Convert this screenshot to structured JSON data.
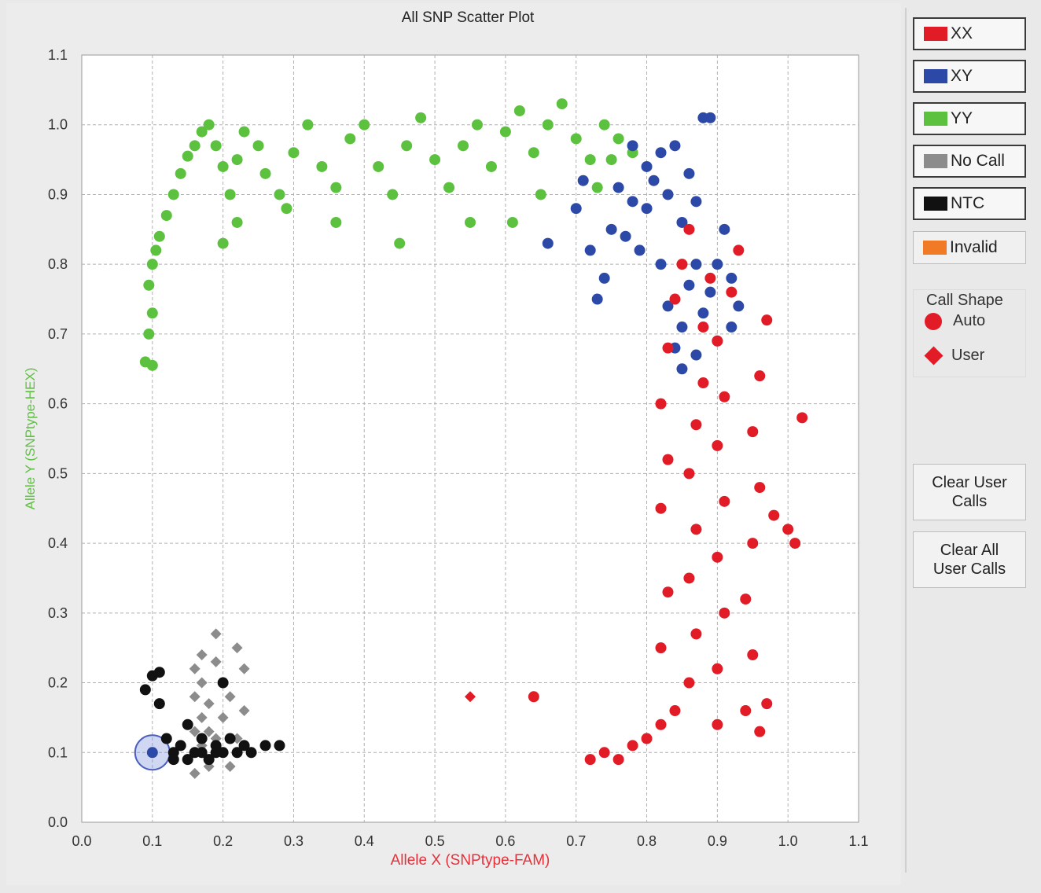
{
  "chart_data": {
    "type": "scatter",
    "title": "All SNP Scatter Plot",
    "xlabel": "Allele X (SNPtype-FAM)",
    "ylabel": "Allele Y (SNPtype-HEX)",
    "xlabel_color": "#e8303a",
    "ylabel_color": "#5cc13f",
    "xlim": [
      0.0,
      1.1
    ],
    "ylim": [
      0.0,
      1.1
    ],
    "xticks": [
      "0.0",
      "0.1",
      "0.2",
      "0.3",
      "0.4",
      "0.5",
      "0.6",
      "0.7",
      "0.8",
      "0.9",
      "1.0",
      "1.1"
    ],
    "yticks": [
      "0.0",
      "0.1",
      "0.2",
      "0.3",
      "0.4",
      "0.5",
      "0.6",
      "0.7",
      "0.8",
      "0.9",
      "1.0",
      "1.1"
    ],
    "grid": true,
    "series": [
      {
        "name": "YY",
        "color": "#5cc13f",
        "shape": "circle",
        "points": [
          [
            0.09,
            0.66
          ],
          [
            0.1,
            0.655
          ],
          [
            0.095,
            0.7
          ],
          [
            0.1,
            0.73
          ],
          [
            0.095,
            0.77
          ],
          [
            0.1,
            0.8
          ],
          [
            0.105,
            0.82
          ],
          [
            0.11,
            0.84
          ],
          [
            0.12,
            0.87
          ],
          [
            0.13,
            0.9
          ],
          [
            0.14,
            0.93
          ],
          [
            0.15,
            0.955
          ],
          [
            0.16,
            0.97
          ],
          [
            0.17,
            0.99
          ],
          [
            0.18,
            1.0
          ],
          [
            0.19,
            0.97
          ],
          [
            0.2,
            0.94
          ],
          [
            0.21,
            0.9
          ],
          [
            0.22,
            0.95
          ],
          [
            0.23,
            0.99
          ],
          [
            0.25,
            0.97
          ],
          [
            0.26,
            0.93
          ],
          [
            0.28,
            0.9
          ],
          [
            0.3,
            0.96
          ],
          [
            0.32,
            1.0
          ],
          [
            0.34,
            0.94
          ],
          [
            0.36,
            0.91
          ],
          [
            0.38,
            0.98
          ],
          [
            0.4,
            1.0
          ],
          [
            0.42,
            0.94
          ],
          [
            0.44,
            0.9
          ],
          [
            0.46,
            0.97
          ],
          [
            0.48,
            1.01
          ],
          [
            0.5,
            0.95
          ],
          [
            0.52,
            0.91
          ],
          [
            0.54,
            0.97
          ],
          [
            0.56,
            1.0
          ],
          [
            0.58,
            0.94
          ],
          [
            0.6,
            0.99
          ],
          [
            0.62,
            1.02
          ],
          [
            0.64,
            0.96
          ],
          [
            0.66,
            1.0
          ],
          [
            0.68,
            1.03
          ],
          [
            0.7,
            0.98
          ],
          [
            0.72,
            0.95
          ],
          [
            0.74,
            1.0
          ],
          [
            0.76,
            0.98
          ],
          [
            0.2,
            0.83
          ],
          [
            0.22,
            0.86
          ],
          [
            0.29,
            0.88
          ],
          [
            0.36,
            0.86
          ],
          [
            0.45,
            0.83
          ],
          [
            0.55,
            0.86
          ],
          [
            0.61,
            0.86
          ],
          [
            0.65,
            0.9
          ],
          [
            0.73,
            0.91
          ],
          [
            0.75,
            0.95
          ],
          [
            0.78,
            0.96
          ]
        ]
      },
      {
        "name": "XY",
        "color": "#2d49a8",
        "shape": "circle",
        "points": [
          [
            0.1,
            0.1
          ],
          [
            0.66,
            0.83
          ],
          [
            0.7,
            0.88
          ],
          [
            0.71,
            0.92
          ],
          [
            0.72,
            0.82
          ],
          [
            0.73,
            0.75
          ],
          [
            0.74,
            0.78
          ],
          [
            0.75,
            0.85
          ],
          [
            0.76,
            0.91
          ],
          [
            0.77,
            0.84
          ],
          [
            0.78,
            0.97
          ],
          [
            0.78,
            0.89
          ],
          [
            0.79,
            0.82
          ],
          [
            0.8,
            0.94
          ],
          [
            0.8,
            0.88
          ],
          [
            0.81,
            0.92
          ],
          [
            0.82,
            0.96
          ],
          [
            0.82,
            0.8
          ],
          [
            0.83,
            0.9
          ],
          [
            0.84,
            0.97
          ],
          [
            0.85,
            0.86
          ],
          [
            0.86,
            0.93
          ],
          [
            0.87,
            0.89
          ],
          [
            0.88,
            1.01
          ],
          [
            0.89,
            1.01
          ],
          [
            0.83,
            0.74
          ],
          [
            0.84,
            0.68
          ],
          [
            0.85,
            0.71
          ],
          [
            0.86,
            0.77
          ],
          [
            0.87,
            0.8
          ],
          [
            0.88,
            0.73
          ],
          [
            0.89,
            0.76
          ],
          [
            0.9,
            0.8
          ],
          [
            0.91,
            0.85
          ],
          [
            0.92,
            0.78
          ],
          [
            0.93,
            0.74
          ],
          [
            0.85,
            0.65
          ],
          [
            0.87,
            0.67
          ],
          [
            0.9,
            0.69
          ],
          [
            0.92,
            0.71
          ]
        ]
      },
      {
        "name": "XX",
        "color": "#e11c26",
        "shape": "circle",
        "points": [
          [
            0.64,
            0.18
          ],
          [
            0.72,
            0.09
          ],
          [
            0.74,
            0.1
          ],
          [
            0.76,
            0.09
          ],
          [
            0.78,
            0.11
          ],
          [
            0.8,
            0.12
          ],
          [
            0.82,
            0.14
          ],
          [
            0.84,
            0.16
          ],
          [
            0.82,
            0.25
          ],
          [
            0.83,
            0.33
          ],
          [
            0.82,
            0.45
          ],
          [
            0.83,
            0.52
          ],
          [
            0.82,
            0.6
          ],
          [
            0.83,
            0.68
          ],
          [
            0.84,
            0.75
          ],
          [
            0.85,
            0.8
          ],
          [
            0.86,
            0.85
          ],
          [
            0.86,
            0.2
          ],
          [
            0.87,
            0.27
          ],
          [
            0.86,
            0.35
          ],
          [
            0.87,
            0.42
          ],
          [
            0.86,
            0.5
          ],
          [
            0.87,
            0.57
          ],
          [
            0.88,
            0.63
          ],
          [
            0.88,
            0.71
          ],
          [
            0.89,
            0.78
          ],
          [
            0.9,
            0.14
          ],
          [
            0.9,
            0.22
          ],
          [
            0.91,
            0.3
          ],
          [
            0.9,
            0.38
          ],
          [
            0.91,
            0.46
          ],
          [
            0.9,
            0.54
          ],
          [
            0.91,
            0.61
          ],
          [
            0.9,
            0.69
          ],
          [
            0.92,
            0.76
          ],
          [
            0.93,
            0.82
          ],
          [
            0.94,
            0.16
          ],
          [
            0.95,
            0.24
          ],
          [
            0.94,
            0.32
          ],
          [
            0.95,
            0.4
          ],
          [
            0.96,
            0.48
          ],
          [
            0.95,
            0.56
          ],
          [
            0.96,
            0.64
          ],
          [
            0.97,
            0.72
          ],
          [
            0.98,
            0.44
          ],
          [
            1.0,
            0.42
          ],
          [
            1.01,
            0.4
          ],
          [
            0.97,
            0.17
          ],
          [
            0.96,
            0.13
          ],
          [
            1.02,
            0.58
          ]
        ]
      },
      {
        "name": "XX (User)",
        "color": "#e11c26",
        "shape": "diamond",
        "points": [
          [
            0.55,
            0.18
          ]
        ]
      },
      {
        "name": "No Call",
        "color": "#8c8c8c",
        "shape": "diamond",
        "points": [
          [
            0.15,
            0.09
          ],
          [
            0.16,
            0.07
          ],
          [
            0.16,
            0.13
          ],
          [
            0.16,
            0.18
          ],
          [
            0.16,
            0.22
          ],
          [
            0.17,
            0.11
          ],
          [
            0.17,
            0.15
          ],
          [
            0.17,
            0.2
          ],
          [
            0.17,
            0.24
          ],
          [
            0.18,
            0.08
          ],
          [
            0.18,
            0.13
          ],
          [
            0.18,
            0.17
          ],
          [
            0.19,
            0.12
          ],
          [
            0.19,
            0.23
          ],
          [
            0.19,
            0.27
          ],
          [
            0.2,
            0.1
          ],
          [
            0.2,
            0.15
          ],
          [
            0.2,
            0.2
          ],
          [
            0.21,
            0.08
          ],
          [
            0.21,
            0.18
          ],
          [
            0.22,
            0.12
          ],
          [
            0.22,
            0.25
          ],
          [
            0.23,
            0.16
          ],
          [
            0.23,
            0.22
          ],
          [
            0.24,
            0.1
          ]
        ]
      },
      {
        "name": "NTC",
        "color": "#111111",
        "shape": "circle",
        "points": [
          [
            0.09,
            0.19
          ],
          [
            0.1,
            0.21
          ],
          [
            0.11,
            0.215
          ],
          [
            0.11,
            0.17
          ],
          [
            0.12,
            0.12
          ],
          [
            0.13,
            0.1
          ],
          [
            0.14,
            0.11
          ],
          [
            0.15,
            0.09
          ],
          [
            0.15,
            0.14
          ],
          [
            0.16,
            0.1
          ],
          [
            0.17,
            0.12
          ],
          [
            0.18,
            0.09
          ],
          [
            0.19,
            0.11
          ],
          [
            0.2,
            0.1
          ],
          [
            0.2,
            0.2
          ],
          [
            0.21,
            0.12
          ],
          [
            0.22,
            0.1
          ],
          [
            0.23,
            0.11
          ],
          [
            0.24,
            0.1
          ],
          [
            0.26,
            0.11
          ],
          [
            0.28,
            0.11
          ],
          [
            0.13,
            0.09
          ],
          [
            0.17,
            0.1
          ],
          [
            0.19,
            0.1
          ]
        ]
      }
    ],
    "selection": {
      "x": 0.1,
      "y": 0.1
    }
  },
  "legend": {
    "items": [
      {
        "label": "XX",
        "color": "#e11c26"
      },
      {
        "label": "XY",
        "color": "#2d49a8"
      },
      {
        "label": "YY",
        "color": "#5cc13f"
      },
      {
        "label": "No Call",
        "color": "#8c8c8c"
      },
      {
        "label": "NTC",
        "color": "#111111"
      },
      {
        "label": "Invalid",
        "color": "#f07a26"
      }
    ]
  },
  "call_shape": {
    "title": "Call Shape",
    "auto_label": "Auto",
    "user_label": "User"
  },
  "buttons": {
    "clear_user_calls": "Clear User\nCalls",
    "clear_all_user_calls": "Clear All\nUser Calls"
  }
}
